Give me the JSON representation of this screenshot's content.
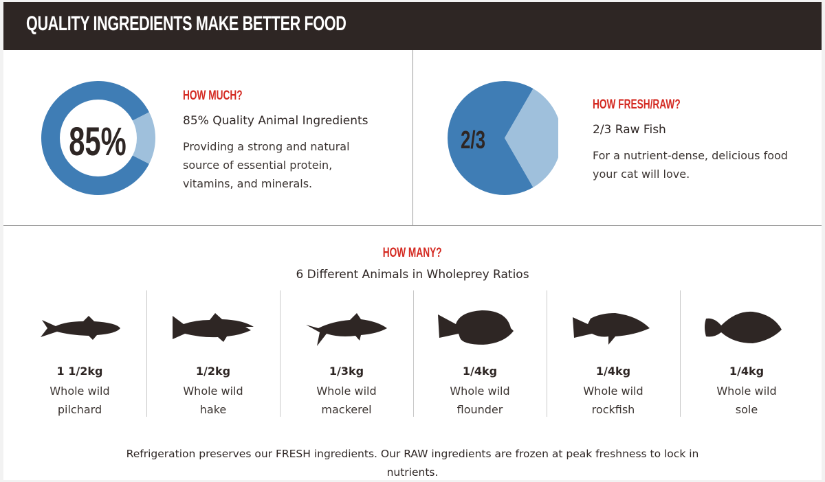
{
  "header": {
    "title": "QUALITY INGREDIENTS MAKE BETTER FOOD"
  },
  "colors": {
    "header_bg": "#2e2624",
    "primary_blue": "#3f7db5",
    "light_blue": "#9fc0dc",
    "accent_red": "#d42a22"
  },
  "how_much": {
    "eyebrow": "HOW MUCH?",
    "title": "85% Quality Animal Ingredients",
    "description": "Providing a strong and natural source of essential protein, vitamins, and minerals.",
    "chart_label": "85%",
    "percent": 85
  },
  "how_fresh": {
    "eyebrow": "HOW FRESH/RAW?",
    "title": "2/3 Raw Fish",
    "description": "For a nutrient-dense, delicious food your cat will love.",
    "chart_label": "2/3",
    "fraction": 0.6667
  },
  "how_many": {
    "eyebrow": "HOW MANY?",
    "title": "6 Different Animals in Wholeprey Ratios"
  },
  "animals": [
    {
      "icon": "pilchard-icon",
      "weight": "1 1/2kg",
      "line1": "Whole wild",
      "line2": "pilchard"
    },
    {
      "icon": "hake-icon",
      "weight": "1/2kg",
      "line1": "Whole wild",
      "line2": "hake"
    },
    {
      "icon": "mackerel-icon",
      "weight": "1/3kg",
      "line1": "Whole wild",
      "line2": "mackerel"
    },
    {
      "icon": "flounder-icon",
      "weight": "1/4kg",
      "line1": "Whole wild",
      "line2": "flounder"
    },
    {
      "icon": "rockfish-icon",
      "weight": "1/4kg",
      "line1": "Whole wild",
      "line2": "rockfish"
    },
    {
      "icon": "sole-icon",
      "weight": "1/4kg",
      "line1": "Whole wild",
      "line2": "sole"
    }
  ],
  "footer": {
    "text": "Refrigeration preserves our FRESH ingredients. Our RAW ingredients are frozen at peak freshness to lock in nutrients."
  }
}
